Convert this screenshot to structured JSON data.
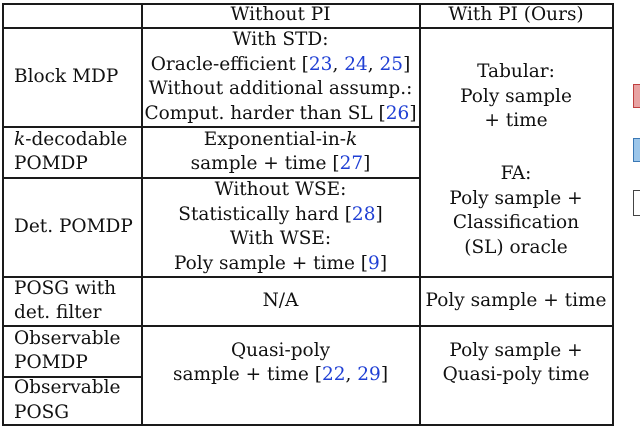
{
  "header": {
    "without_pi": "Without PI",
    "with_pi": "With PI (Ours)"
  },
  "rows": {
    "block_mdp": {
      "label": "Block MDP",
      "w1": "With STD:",
      "w2_pre": "Oracle-efficient [",
      "c23": "23",
      "sep1": ", ",
      "c24": "24",
      "sep2": ", ",
      "c25": "25",
      "w2_post": "]",
      "w3": "Without additional assump.:",
      "w4_pre": "Comput. harder than SL [",
      "c26": "26",
      "w4_post": "]"
    },
    "k_decodable": {
      "label_k": "k",
      "label_l1_rest": "-decodable",
      "label_l2": "POMDP",
      "w1_pre": "Exponential-in-",
      "w1_k": "k",
      "w2_pre": "sample + time [",
      "c27": "27",
      "w2_post": "]"
    },
    "det_pomdp": {
      "label": "Det. POMDP",
      "w1": "Without WSE:",
      "w2_pre": "Statistically hard [",
      "c28": "28",
      "w2_post": "]",
      "w3": "With WSE:",
      "w4_pre": "Poly sample + time [",
      "c9": "9",
      "w4_post": "]"
    },
    "posg_filter": {
      "label_l1": "POSG with",
      "label_l2": "det. filter",
      "without": "N/A",
      "with": "Poly sample + time"
    },
    "observable_pomdp": {
      "label_l1": "Observable",
      "label_l2": "POMDP"
    },
    "observable_posg": {
      "label_l1": "Observable",
      "label_l2": "POSG"
    },
    "observable_merged": {
      "w1": "Quasi-poly",
      "w2_pre": "sample + time [",
      "c22": "22",
      "sep": ", ",
      "c29": "29",
      "w2_post": "]",
      "p1": "Poly sample +",
      "p2": "Quasi-poly time"
    }
  },
  "with_pi_upper": {
    "tab_title": "Tabular:",
    "tab_l1": "Poly sample",
    "tab_l2": "+ time",
    "fa_title": "FA:",
    "fa_l1": "Poly sample +",
    "fa_l2": "Classification",
    "fa_l3": "(SL) oracle"
  },
  "colors": {
    "citation": "#1f3fd4",
    "rule": "#1a1a1a"
  }
}
